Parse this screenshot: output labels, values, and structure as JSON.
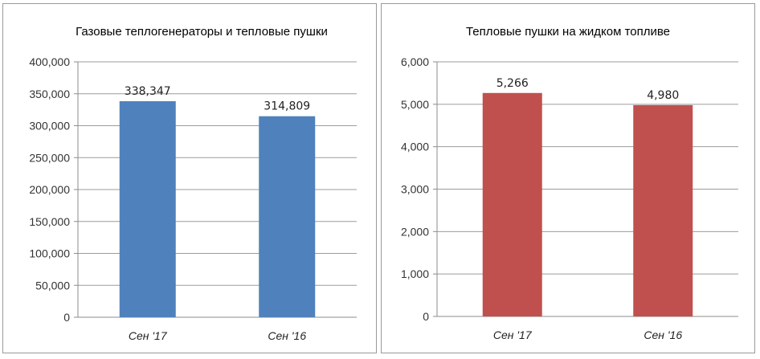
{
  "chart_data": [
    {
      "type": "bar",
      "title": "Газовые теплогенераторы и тепловые пушки",
      "categories": [
        "Сен '17",
        "Сен '16"
      ],
      "values": [
        338347,
        314809
      ],
      "data_labels": [
        "338,347",
        "314,809"
      ],
      "ylim": [
        0,
        400000
      ],
      "yticks": [
        0,
        50000,
        100000,
        150000,
        200000,
        250000,
        300000,
        350000,
        400000
      ],
      "ytick_labels": [
        "0",
        "50,000",
        "100,000",
        "150,000",
        "200,000",
        "250,000",
        "300,000",
        "350,000",
        "400,000"
      ],
      "color": "#4f81bd",
      "grid": true,
      "xlabel": "",
      "ylabel": ""
    },
    {
      "type": "bar",
      "title": "Тепловые пушки на жидком топливе",
      "categories": [
        "Сен '17",
        "Сен '16"
      ],
      "values": [
        5266,
        4980
      ],
      "data_labels": [
        "5,266",
        "4,980"
      ],
      "ylim": [
        0,
        6000
      ],
      "yticks": [
        0,
        1000,
        2000,
        3000,
        4000,
        5000,
        6000
      ],
      "ytick_labels": [
        "0",
        "1,000",
        "2,000",
        "3,000",
        "4,000",
        "5,000",
        "6,000"
      ],
      "color": "#c0504d",
      "grid": true,
      "xlabel": "",
      "ylabel": ""
    }
  ]
}
